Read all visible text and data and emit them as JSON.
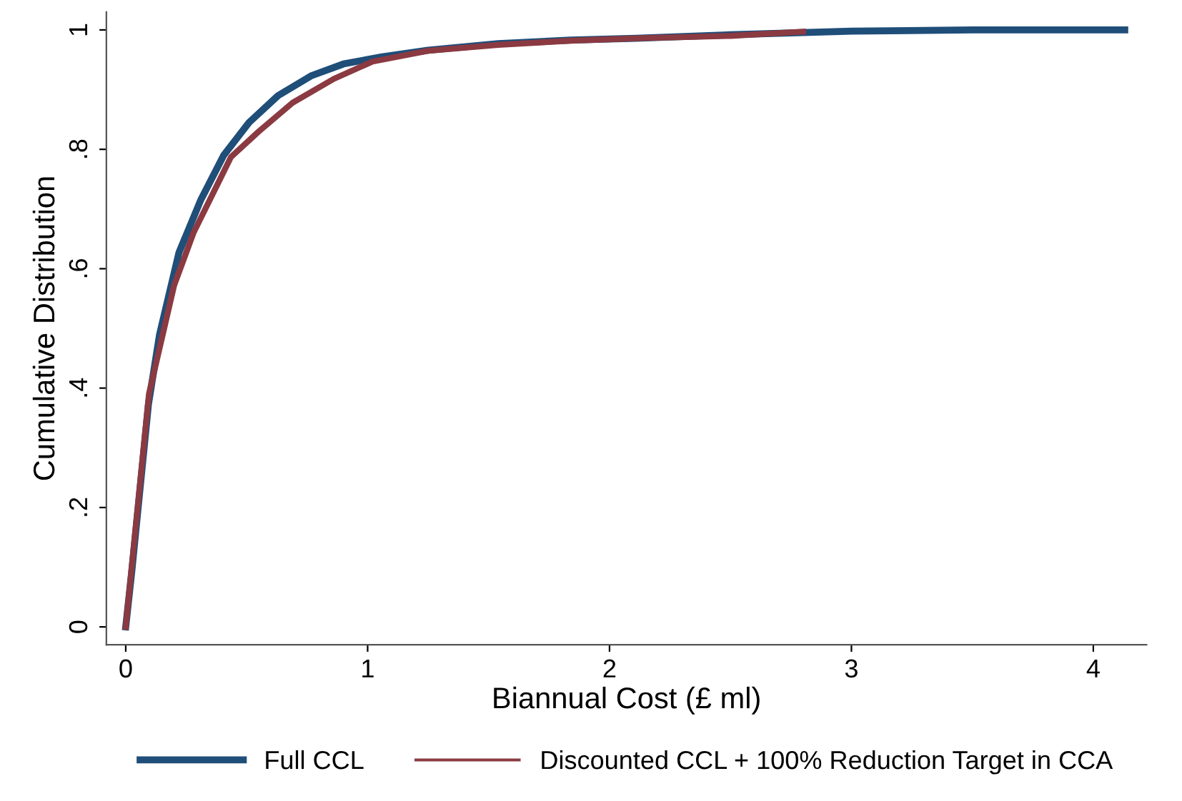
{
  "chart_data": {
    "type": "line",
    "xlabel": "Biannual Cost (£ ml)",
    "ylabel": "Cumulative Distribution",
    "xlim": [
      -0.08,
      4.22
    ],
    "xticks": [
      0,
      1,
      2,
      3,
      4
    ],
    "ylim": [
      -0.03,
      1.03
    ],
    "yticks": [
      0,
      {
        "value": 0.2,
        "label": ".2"
      },
      {
        "value": 0.4,
        "label": ".4"
      },
      {
        "value": 0.6,
        "label": ".6"
      },
      {
        "value": 0.8,
        "label": ".8"
      },
      1
    ],
    "grid": false,
    "legend": "bottom",
    "marker": "none",
    "line_style": "solid",
    "series": [
      {
        "name": "Full CCL",
        "color": "#1f4e79",
        "x": [
          0,
          0.025,
          0.094,
          0.14,
          0.22,
          0.31,
          0.405,
          0.51,
          0.63,
          0.766,
          0.9,
          1.06,
          1.25,
          1.54,
          1.84,
          2.11,
          2.5,
          3.0,
          3.5,
          4.13
        ],
        "values": [
          0,
          0.093,
          0.373,
          0.49,
          0.627,
          0.715,
          0.79,
          0.845,
          0.89,
          0.923,
          0.943,
          0.955,
          0.966,
          0.977,
          0.983,
          0.986,
          0.992,
          0.998,
          1.0,
          1.0
        ]
      },
      {
        "name": "Discounted CCL + 100% Reduction Target in CCA",
        "color": "#8b3a42",
        "x": [
          0,
          0.096,
          0.2,
          0.28,
          0.435,
          0.55,
          0.69,
          0.86,
          1.02,
          1.25,
          1.54,
          1.84,
          2.11,
          2.5,
          2.8
        ],
        "values": [
          0,
          0.39,
          0.572,
          0.66,
          0.787,
          0.83,
          0.878,
          0.918,
          0.947,
          0.965,
          0.975,
          0.982,
          0.986,
          0.99,
          0.997
        ]
      }
    ]
  }
}
